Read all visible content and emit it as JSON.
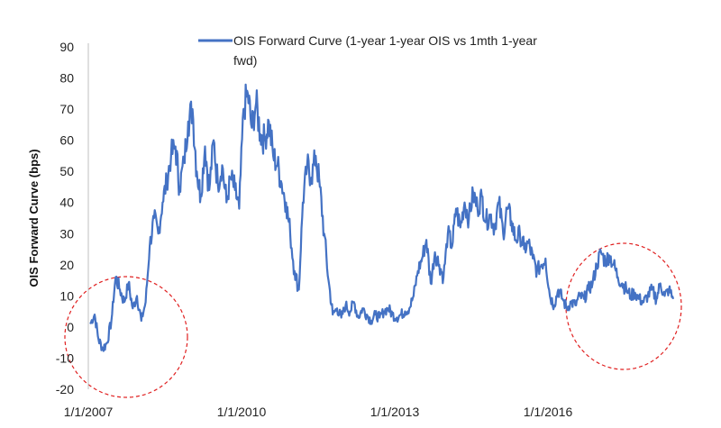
{
  "chart_data": {
    "type": "line",
    "ylabel": "OIS Forward Curve (bps)",
    "xlabel": "",
    "ylim": [
      -20,
      90
    ],
    "y_ticks": [
      -20,
      -10,
      0,
      10,
      20,
      30,
      40,
      50,
      60,
      70,
      80,
      90
    ],
    "x_ticks": [
      "1/1/2007",
      "1/1/2010",
      "1/1/2013",
      "1/1/2016"
    ],
    "grid": false,
    "legend": {
      "position": "top",
      "entries": [
        "OIS Forward Curve (1-year 1-year OIS vs 1mth 1-year fwd)"
      ]
    },
    "annotations": [
      "dashed red circle around 2007–2008 values",
      "dashed red circle around 2016–2017 values"
    ],
    "colors": {
      "series": "#4472C4",
      "annotation": "#E02020"
    },
    "series": [
      {
        "name": "OIS Forward Curve (1-year 1-year OIS vs 1mth 1-year fwd)",
        "x": [
          "2007-01",
          "2007-02",
          "2007-03",
          "2007-04",
          "2007-05",
          "2007-06",
          "2007-07",
          "2007-08",
          "2007-09",
          "2007-10",
          "2007-11",
          "2007-12",
          "2008-01",
          "2008-02",
          "2008-03",
          "2008-04",
          "2008-05",
          "2008-06",
          "2008-07",
          "2008-08",
          "2008-09",
          "2008-10",
          "2008-11",
          "2008-12",
          "2009-01",
          "2009-02",
          "2009-03",
          "2009-04",
          "2009-05",
          "2009-06",
          "2009-07",
          "2009-08",
          "2009-09",
          "2009-10",
          "2009-11",
          "2009-12",
          "2010-01",
          "2010-02",
          "2010-03",
          "2010-04",
          "2010-05",
          "2010-06",
          "2010-07",
          "2010-08",
          "2010-09",
          "2010-10",
          "2010-11",
          "2010-12",
          "2011-01",
          "2011-02",
          "2011-03",
          "2011-04",
          "2011-05",
          "2011-06",
          "2011-07",
          "2011-08",
          "2011-09",
          "2011-10",
          "2011-11",
          "2011-12",
          "2012-01",
          "2012-02",
          "2012-03",
          "2012-04",
          "2012-05",
          "2012-06",
          "2012-07",
          "2012-08",
          "2012-09",
          "2012-10",
          "2012-11",
          "2012-12",
          "2013-01",
          "2013-02",
          "2013-03",
          "2013-04",
          "2013-05",
          "2013-06",
          "2013-07",
          "2013-08",
          "2013-09",
          "2013-10",
          "2013-11",
          "2013-12",
          "2014-01",
          "2014-02",
          "2014-03",
          "2014-04",
          "2014-05",
          "2014-06",
          "2014-07",
          "2014-08",
          "2014-09",
          "2014-10",
          "2014-11",
          "2014-12",
          "2015-01",
          "2015-02",
          "2015-03",
          "2015-04",
          "2015-05",
          "2015-06",
          "2015-07",
          "2015-08",
          "2015-09",
          "2015-10",
          "2015-11",
          "2015-12",
          "2016-01",
          "2016-02",
          "2016-03",
          "2016-04",
          "2016-05",
          "2016-06",
          "2016-07",
          "2016-08",
          "2016-09",
          "2016-10",
          "2016-11",
          "2016-12",
          "2017-01",
          "2017-02",
          "2017-03",
          "2017-04",
          "2017-05",
          "2017-06",
          "2017-07",
          "2017-08",
          "2017-09",
          "2017-10",
          "2017-11",
          "2017-12",
          "2018-01",
          "2018-02",
          "2018-03",
          "2018-04",
          "2018-05",
          "2018-06"
        ],
        "values": [
          1,
          4,
          -4,
          -7,
          -5,
          2,
          16,
          12,
          8,
          14,
          6,
          10,
          2,
          8,
          26,
          35,
          30,
          40,
          47,
          55,
          58,
          45,
          53,
          66,
          70,
          50,
          42,
          58,
          44,
          60,
          46,
          52,
          40,
          48,
          44,
          38,
          70,
          75,
          64,
          72,
          62,
          60,
          66,
          55,
          52,
          46,
          40,
          30,
          18,
          12,
          40,
          52,
          48,
          55,
          45,
          30,
          15,
          4,
          6,
          3,
          7,
          5,
          8,
          3,
          6,
          4,
          2,
          4,
          3,
          5,
          6,
          4,
          3,
          4,
          5,
          6,
          10,
          18,
          22,
          28,
          14,
          24,
          20,
          16,
          30,
          26,
          38,
          32,
          40,
          35,
          43,
          38,
          42,
          34,
          36,
          32,
          40,
          30,
          38,
          34,
          28,
          30,
          25,
          27,
          22,
          18,
          20,
          22,
          10,
          7,
          12,
          9,
          6,
          8,
          7,
          10,
          9,
          12,
          14,
          20,
          24,
          21,
          23,
          20,
          16,
          14,
          12,
          10,
          11,
          9,
          8,
          10,
          12,
          9,
          14,
          10,
          12,
          9
        ]
      }
    ]
  }
}
